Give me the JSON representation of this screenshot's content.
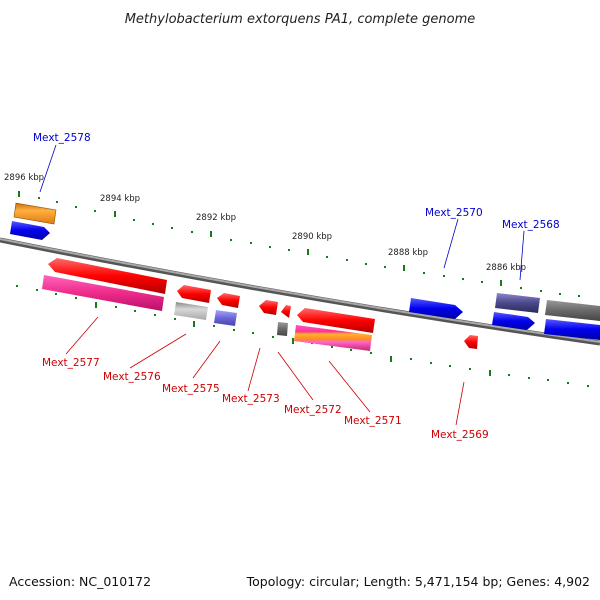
{
  "title": "Methylobacterium extorquens PA1, complete genome",
  "accession": "Accession: NC_010172",
  "summary": "Topology: circular; Length: 5,471,154 bp; Genes: 4,902",
  "colors": {
    "backbone": "#808080",
    "tick": "#1a7a1a",
    "forward_label": "#0000cc",
    "reverse_label": "#cc0000"
  },
  "kbp_marks": [
    "2896 kbp",
    "2894 kbp",
    "2892 kbp",
    "2890 kbp",
    "2888 kbp",
    "2886 kbp"
  ],
  "forward_labels": [
    "Mext_2578",
    "Mext_2570",
    "Mext_2568"
  ],
  "reverse_labels": [
    "Mext_2577",
    "Mext_2576",
    "Mext_2575",
    "Mext_2573",
    "Mext_2572",
    "Mext_2571",
    "Mext_2569"
  ]
}
